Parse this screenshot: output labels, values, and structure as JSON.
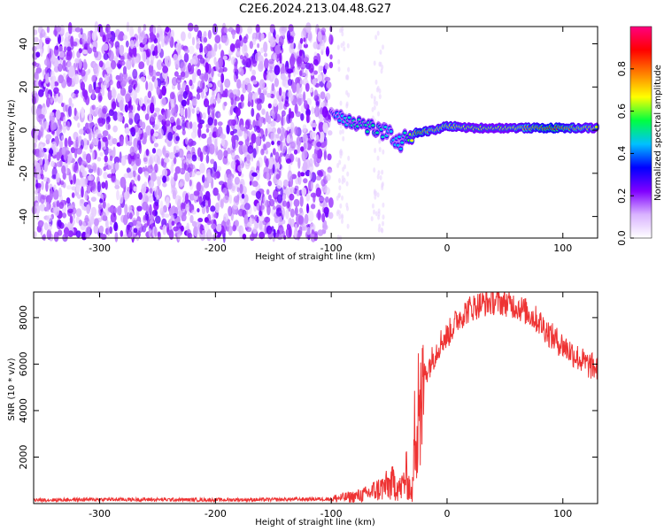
{
  "title": "C2E6.2024.213.04.48.G27",
  "chart_data": [
    {
      "type": "heatmap",
      "xlabel": "Height of straight line (km)",
      "ylabel": "Frequency (Hz)",
      "xlim": [
        -357,
        130
      ],
      "ylim": [
        -50,
        48
      ],
      "xticks": [
        -300,
        -200,
        -100,
        0,
        100
      ],
      "yticks": [
        -40,
        -20,
        0,
        20,
        40
      ],
      "colorbar": {
        "label": "Normalized spectral amplitude",
        "range": [
          0,
          1
        ],
        "ticks": [
          "0.0",
          "0.2",
          "0.4",
          "0.6",
          "0.8"
        ],
        "colors": [
          "#ffffff",
          "#d9b3ff",
          "#8000ff",
          "#0000ff",
          "#00c0ff",
          "#00ff40",
          "#ffff00",
          "#ff8000",
          "#ff0000",
          "#ff0080"
        ]
      },
      "features": {
        "noise_region_x": [
          -357,
          -100
        ],
        "signal_line": [
          {
            "x": -100,
            "y": 8,
            "amp": 0.35
          },
          {
            "x": -90,
            "y": 6,
            "amp": 0.45
          },
          {
            "x": -80,
            "y": 4,
            "amp": 0.5
          },
          {
            "x": -70,
            "y": 2,
            "amp": 0.5
          },
          {
            "x": -60,
            "y": 0,
            "amp": 0.5
          },
          {
            "x": -50,
            "y": -2,
            "amp": 0.45
          },
          {
            "x": -40,
            "y": -6,
            "amp": 0.45
          },
          {
            "x": -35,
            "y": -3,
            "amp": 0.5
          },
          {
            "x": -25,
            "y": -1,
            "amp": 0.85
          },
          {
            "x": -10,
            "y": 0,
            "amp": 0.7
          },
          {
            "x": 0,
            "y": 2,
            "amp": 0.75
          },
          {
            "x": 20,
            "y": 1,
            "amp": 0.65
          },
          {
            "x": 50,
            "y": 1,
            "amp": 0.65
          },
          {
            "x": 90,
            "y": 1,
            "amp": 0.9
          },
          {
            "x": 130,
            "y": 1,
            "amp": 0.65
          }
        ]
      }
    },
    {
      "type": "line",
      "xlabel": "Height of straight line (km)",
      "ylabel": "SNR (10 * v/v)",
      "xlim": [
        -357,
        130
      ],
      "ylim": [
        0,
        9100
      ],
      "xticks": [
        -300,
        -200,
        -100,
        0,
        100
      ],
      "yticks": [
        2000,
        4000,
        6000,
        8000
      ],
      "series": [
        {
          "color": "#ee3333",
          "x": [
            -357,
            -300,
            -250,
            -200,
            -150,
            -100,
            -90,
            -80,
            -70,
            -60,
            -50,
            -45,
            -40,
            -35,
            -30,
            -27,
            -25,
            -22,
            -20,
            -15,
            -10,
            -5,
            0,
            5,
            10,
            20,
            30,
            40,
            50,
            60,
            70,
            80,
            90,
            100,
            110,
            120,
            130
          ],
          "y": [
            150,
            180,
            170,
            160,
            170,
            200,
            250,
            300,
            400,
            600,
            800,
            900,
            600,
            1200,
            300,
            4000,
            6000,
            3000,
            5500,
            6000,
            6500,
            7000,
            7200,
            7600,
            8000,
            8400,
            8600,
            8700,
            8650,
            8500,
            8200,
            7800,
            7200,
            6800,
            6400,
            6000,
            5800
          ]
        }
      ]
    }
  ]
}
